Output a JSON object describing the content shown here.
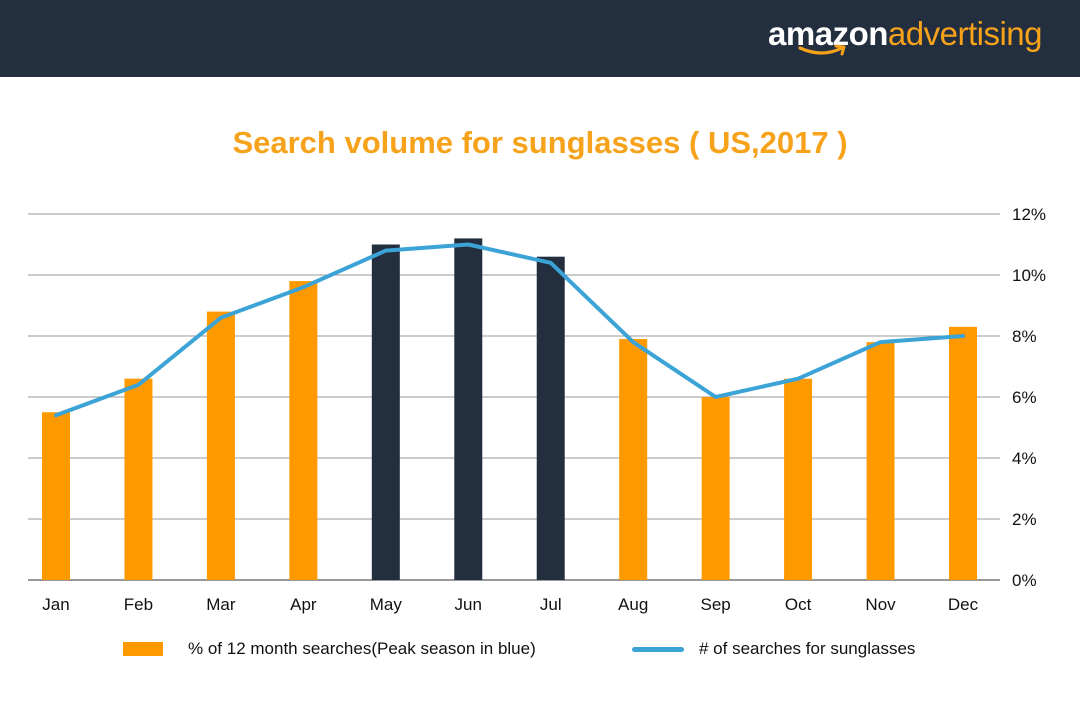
{
  "header": {
    "brand_primary": "amazon",
    "brand_secondary": "advertising",
    "background_color": "#232f3e",
    "brand_primary_color": "#ffffff",
    "brand_secondary_color": "#f7a21b"
  },
  "chart_data": {
    "type": "bar",
    "title": "Search volume for sunglasses ( US,2017 )",
    "categories": [
      "Jan",
      "Feb",
      "Mar",
      "Apr",
      "May",
      "Jun",
      "Jul",
      "Aug",
      "Sep",
      "Oct",
      "Nov",
      "Dec"
    ],
    "y_axis": {
      "side": "right",
      "ticks": [
        "0%",
        "2%",
        "4%",
        "6%",
        "8%",
        "10%",
        "12%"
      ],
      "ylim": [
        0,
        12
      ],
      "grid": true
    },
    "series": [
      {
        "name": "% of 12 month searches(Peak season in blue)",
        "type": "bar",
        "values": [
          5.5,
          6.6,
          8.8,
          9.8,
          11.0,
          11.2,
          10.6,
          7.9,
          6.0,
          6.6,
          7.8,
          8.3
        ],
        "color": "#ff9900",
        "peak_color": "#232f3e",
        "peak_months": [
          "May",
          "Jun",
          "Jul"
        ]
      },
      {
        "name": "# of searches for sunglasses",
        "type": "line",
        "values": [
          5.4,
          6.4,
          8.6,
          9.6,
          10.8,
          11.0,
          10.4,
          7.8,
          6.0,
          6.6,
          7.8,
          8.0
        ],
        "color": "#3ba3d6"
      }
    ],
    "legend_position": "bottom"
  }
}
